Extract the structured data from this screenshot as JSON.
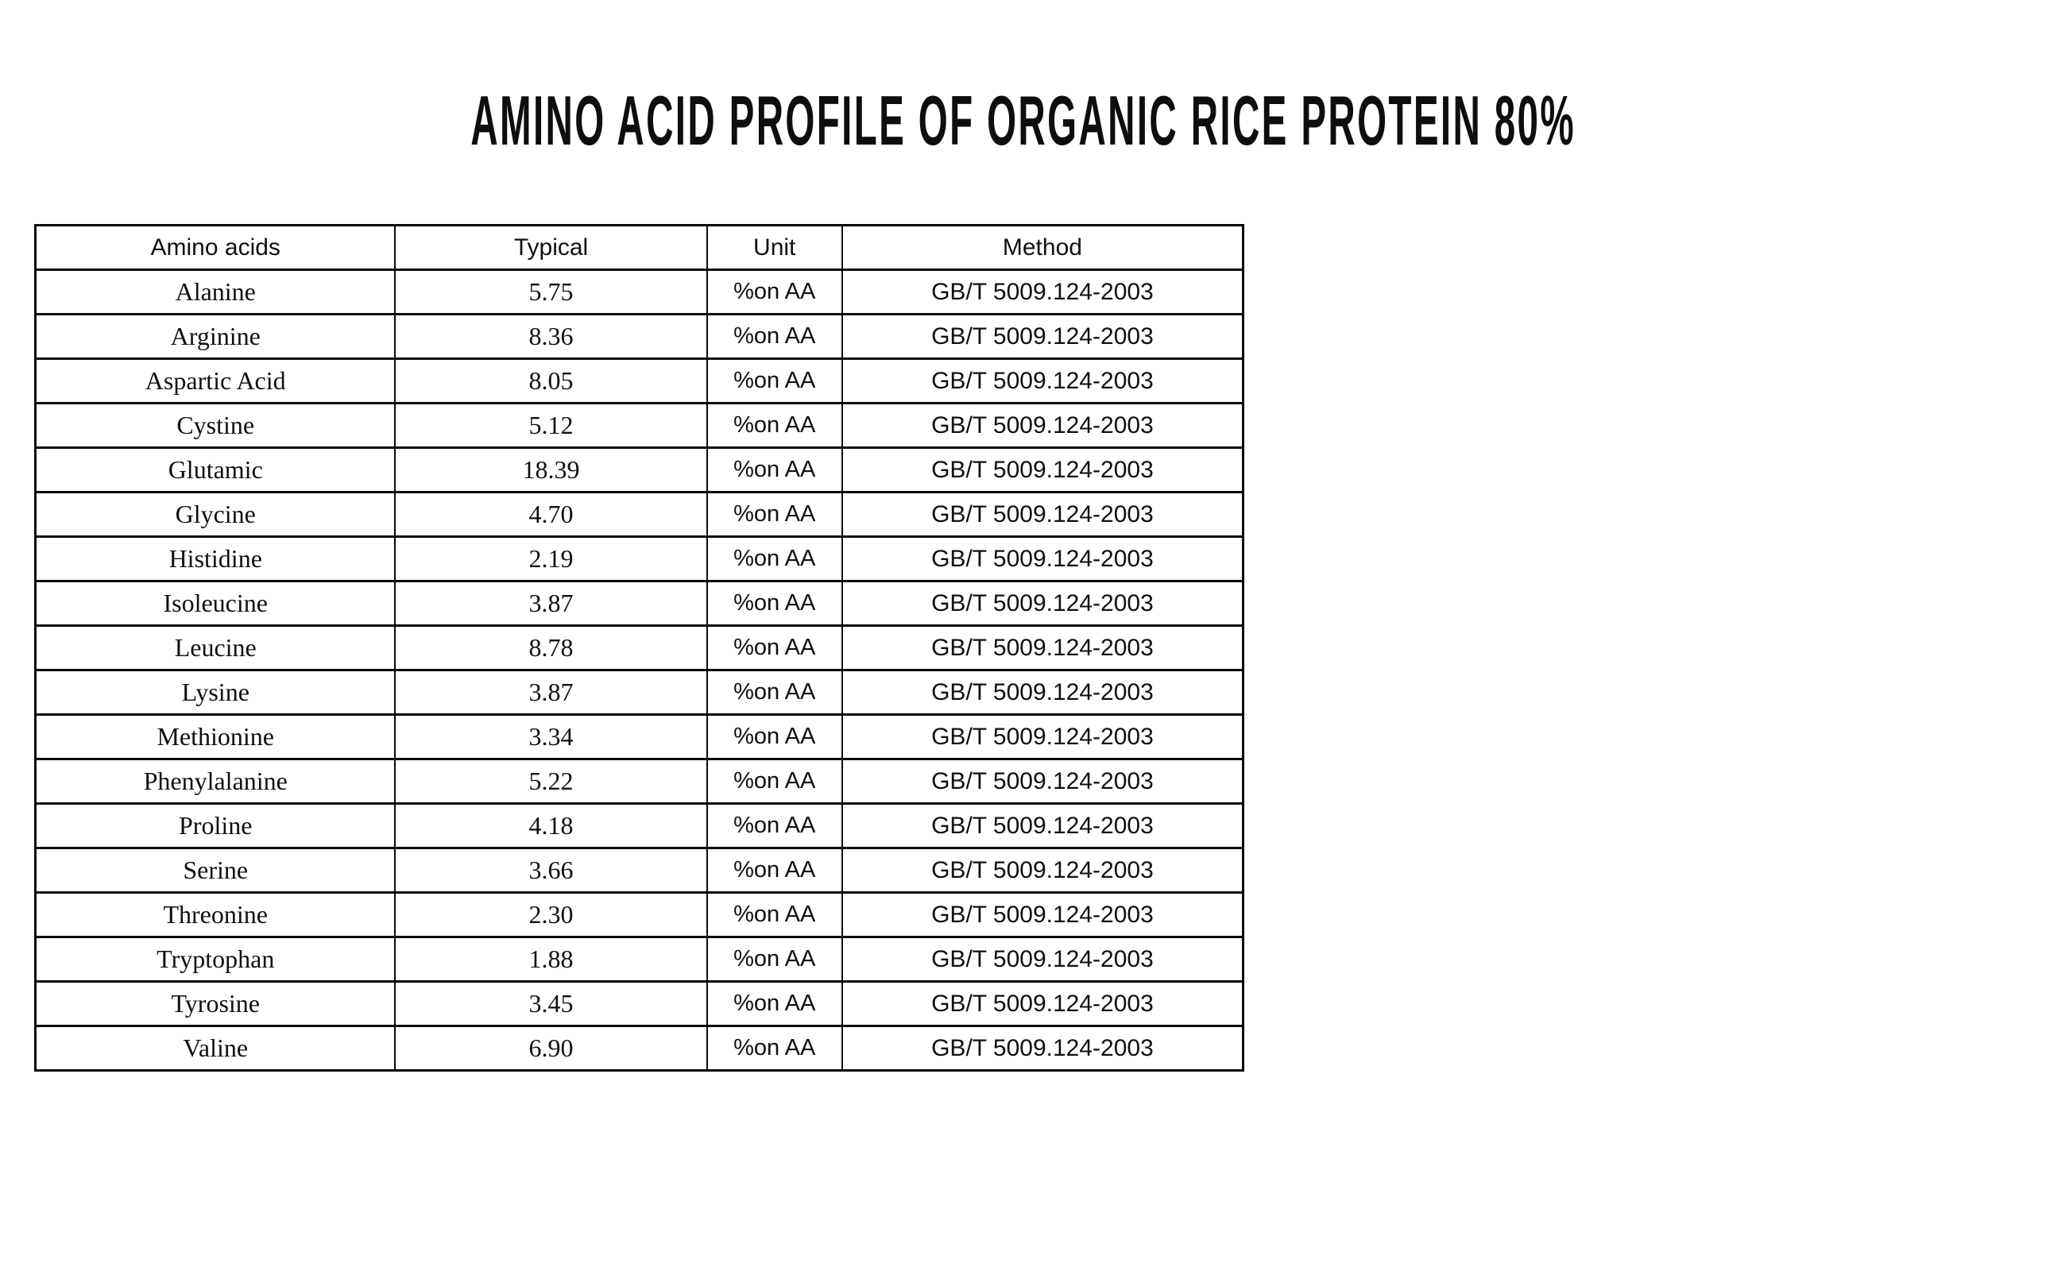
{
  "title": "AMINO ACID PROFILE OF ORGANIC RICE PROTEIN 80%",
  "colors": {
    "background": "#ffffff",
    "text": "#101010",
    "border": "#0a0a0a"
  },
  "table": {
    "headers": [
      "Amino acids",
      "Typical",
      "Unit",
      "Method"
    ],
    "rows": [
      [
        "Alanine",
        "5.75",
        "%on AA",
        "GB/T 5009.124-2003"
      ],
      [
        "Arginine",
        "8.36",
        "%on AA",
        "GB/T 5009.124-2003"
      ],
      [
        "Aspartic Acid",
        "8.05",
        "%on AA",
        "GB/T 5009.124-2003"
      ],
      [
        "Cystine",
        "5.12",
        "%on AA",
        "GB/T 5009.124-2003"
      ],
      [
        "Glutamic",
        "18.39",
        "%on AA",
        "GB/T 5009.124-2003"
      ],
      [
        "Glycine",
        "4.70",
        "%on AA",
        "GB/T 5009.124-2003"
      ],
      [
        "Histidine",
        "2.19",
        "%on AA",
        "GB/T 5009.124-2003"
      ],
      [
        "Isoleucine",
        "3.87",
        "%on AA",
        "GB/T 5009.124-2003"
      ],
      [
        "Leucine",
        "8.78",
        "%on AA",
        "GB/T 5009.124-2003"
      ],
      [
        "Lysine",
        "3.87",
        "%on AA",
        "GB/T 5009.124-2003"
      ],
      [
        "Methionine",
        "3.34",
        "%on AA",
        "GB/T 5009.124-2003"
      ],
      [
        "Phenylalanine",
        "5.22",
        "%on AA",
        "GB/T 5009.124-2003"
      ],
      [
        "Proline",
        "4.18",
        "%on AA",
        "GB/T 5009.124-2003"
      ],
      [
        "Serine",
        "3.66",
        "%on AA",
        "GB/T 5009.124-2003"
      ],
      [
        "Threonine",
        "2.30",
        "%on AA",
        "GB/T 5009.124-2003"
      ],
      [
        "Tryptophan",
        "1.88",
        "%on AA",
        "GB/T 5009.124-2003"
      ],
      [
        "Tyrosine",
        "3.45",
        "%on AA",
        "GB/T 5009.124-2003"
      ],
      [
        "Valine",
        "6.90",
        "%on AA",
        "GB/T 5009.124-2003"
      ]
    ]
  }
}
